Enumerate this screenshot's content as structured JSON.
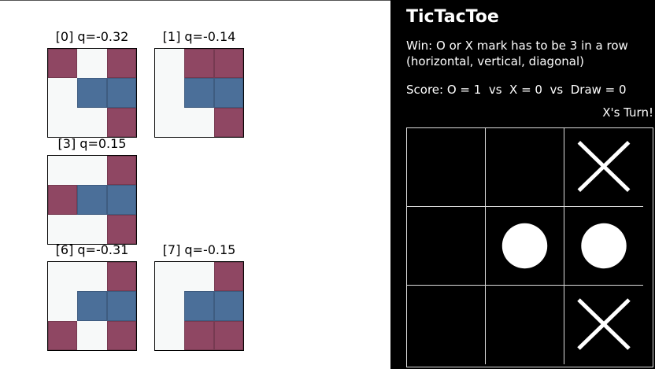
{
  "q_panel": {
    "boards": [
      {
        "label": "[0] q=-0.32",
        "cells": [
          "x",
          "e",
          "x",
          "e",
          "o",
          "o",
          "e",
          "e",
          "x"
        ]
      },
      {
        "label": "[1] q=-0.14",
        "cells": [
          "e",
          "x",
          "x",
          "e",
          "o",
          "o",
          "e",
          "e",
          "x"
        ]
      },
      {
        "label": "[3] q=0.15",
        "cells": [
          "e",
          "e",
          "x",
          "x",
          "o",
          "o",
          "e",
          "e",
          "x"
        ]
      },
      {
        "label": "[6] q=-0.31",
        "cells": [
          "e",
          "e",
          "x",
          "e",
          "o",
          "o",
          "x",
          "e",
          "x"
        ]
      },
      {
        "label": "[7] q=-0.15",
        "cells": [
          "e",
          "e",
          "x",
          "e",
          "o",
          "o",
          "e",
          "x",
          "x"
        ]
      }
    ],
    "colors": {
      "o": "#4b6f99",
      "x": "#8f4763",
      "empty": "#f7f9f9"
    }
  },
  "game": {
    "title": "TicTacToe",
    "rule_line1": "Win: O or X mark has to be 3 in a row",
    "rule_line2": "(horizontal, vertical, diagonal)",
    "score": "Score: O = 1  vs  X = 0  vs  Draw = 0",
    "turn": "X's Turn!",
    "board": [
      "",
      "",
      "X",
      "",
      "O",
      "O",
      "",
      "",
      "X"
    ],
    "colors": {
      "background": "#000000",
      "foreground": "#ffffff",
      "grid": "#dddddd"
    }
  }
}
